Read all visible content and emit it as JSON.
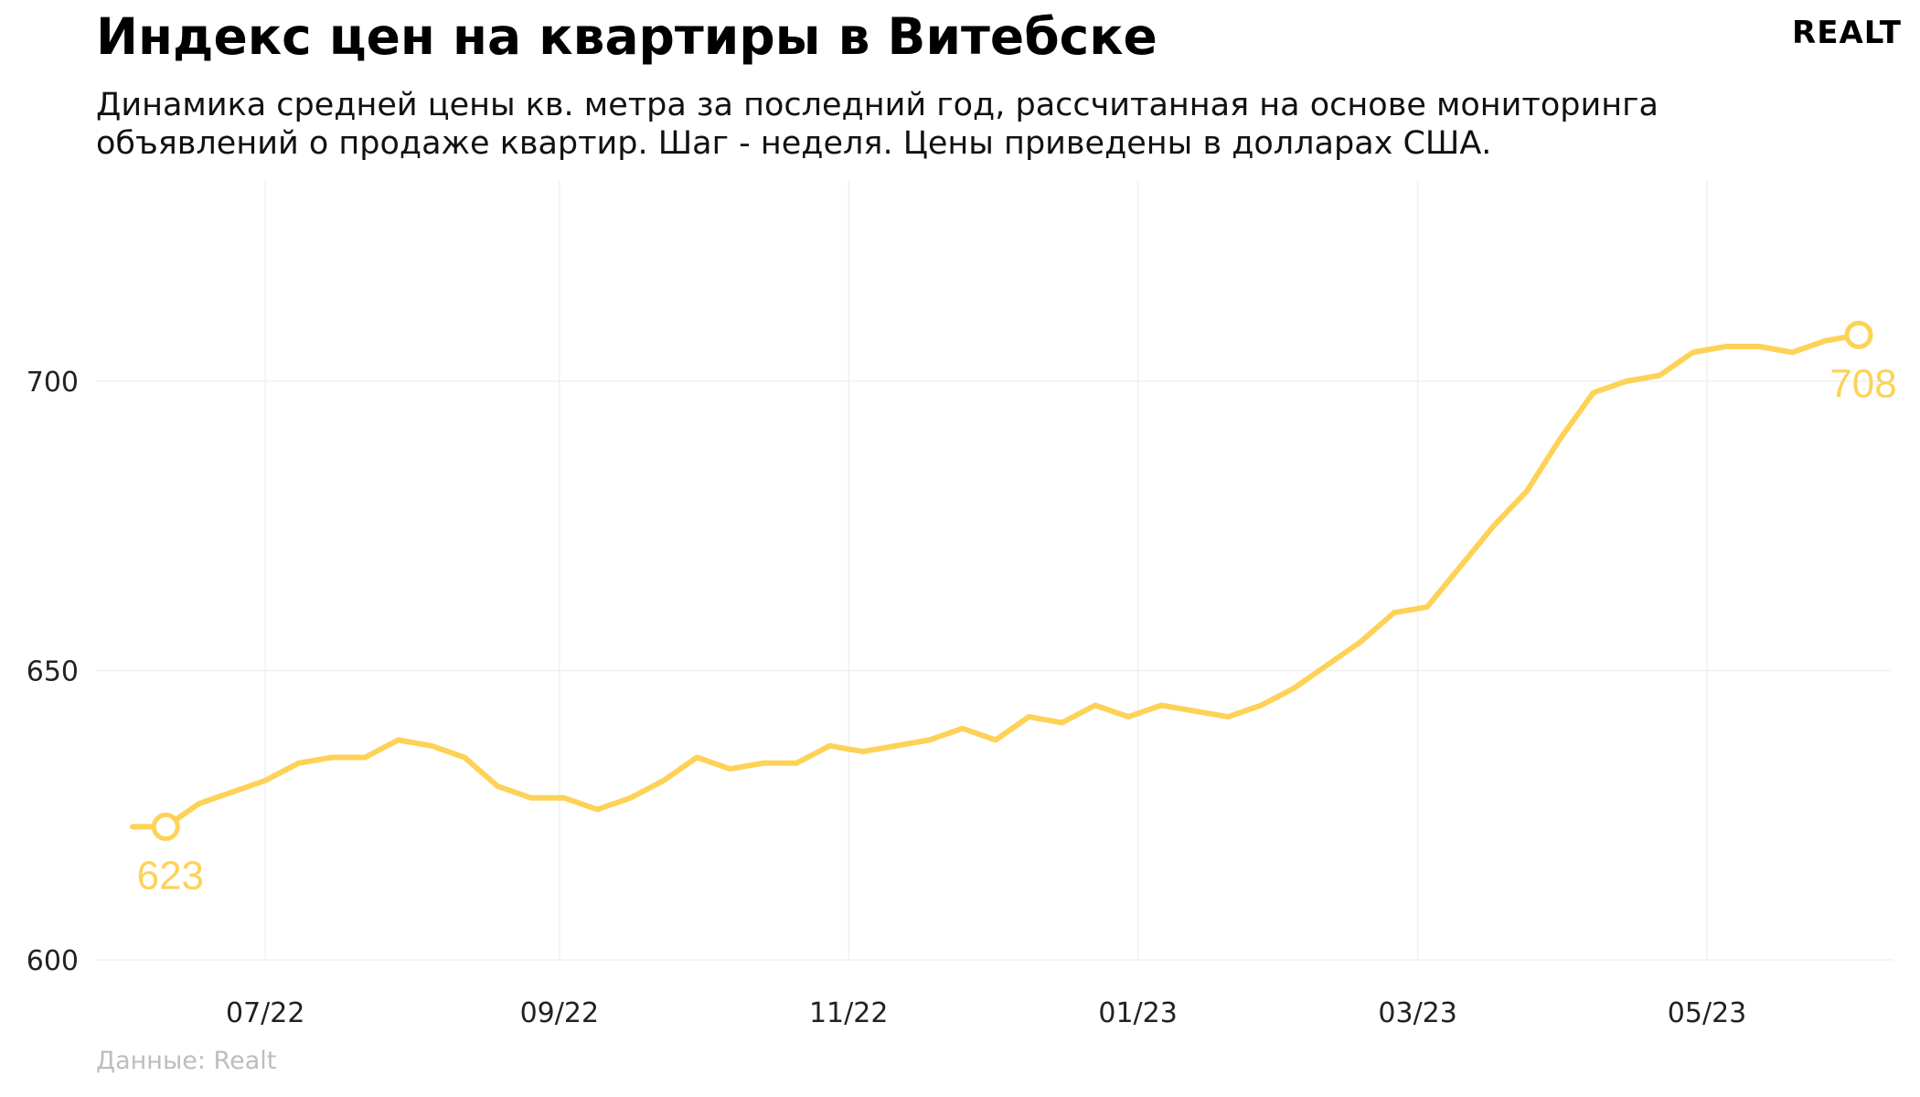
{
  "header": {
    "title": "Индекс цен на квартиры в Витебске",
    "subtitle": "Динамика средней цены кв. метра за последний год, рассчитанная на основе мониторинга объявлений о продаже квартир. Шаг - неделя. Цены приведены в долларах США.",
    "logo": "REALT"
  },
  "footer": {
    "source": "Данные: Realt"
  },
  "colors": {
    "line": "#fdd257",
    "grid": "#f0f0f0"
  },
  "chart_data": {
    "type": "line",
    "title": "Индекс цен на квартиры в Витебске",
    "xlabel": "",
    "ylabel": "",
    "ylim": [
      600,
      735
    ],
    "yticks": [
      600,
      650,
      700
    ],
    "xticks": [
      {
        "date": "2022-07-01",
        "label": "07/22"
      },
      {
        "date": "2022-09-01",
        "label": "09/22"
      },
      {
        "date": "2022-11-01",
        "label": "11/22"
      },
      {
        "date": "2023-01-01",
        "label": "01/23"
      },
      {
        "date": "2023-03-01",
        "label": "03/23"
      },
      {
        "date": "2023-05-01",
        "label": "05/23"
      }
    ],
    "grid": true,
    "legend": "none",
    "series": [
      {
        "x": [
          "2022-06-03",
          "2022-06-10",
          "2022-06-17",
          "2022-06-24",
          "2022-07-01",
          "2022-07-08",
          "2022-07-15",
          "2022-07-22",
          "2022-07-29",
          "2022-08-05",
          "2022-08-12",
          "2022-08-19",
          "2022-08-26",
          "2022-09-02",
          "2022-09-09",
          "2022-09-16",
          "2022-09-23",
          "2022-09-30",
          "2022-10-07",
          "2022-10-14",
          "2022-10-21",
          "2022-10-28",
          "2022-11-04",
          "2022-11-11",
          "2022-11-18",
          "2022-11-25",
          "2022-12-02",
          "2022-12-09",
          "2022-12-16",
          "2022-12-23",
          "2022-12-30",
          "2023-01-06",
          "2023-01-13",
          "2023-01-20",
          "2023-01-27",
          "2023-02-03",
          "2023-02-10",
          "2023-02-17",
          "2023-02-24",
          "2023-03-03",
          "2023-03-10",
          "2023-03-17",
          "2023-03-24",
          "2023-03-31",
          "2023-04-07",
          "2023-04-14",
          "2023-04-21",
          "2023-04-28",
          "2023-05-05",
          "2023-05-12",
          "2023-05-19",
          "2023-05-26",
          "2023-06-02"
        ],
        "values": [
          623,
          623,
          627,
          629,
          631,
          634,
          635,
          635,
          638,
          637,
          635,
          630,
          628,
          628,
          626,
          628,
          631,
          635,
          633,
          634,
          634,
          637,
          636,
          637,
          638,
          640,
          638,
          642,
          641,
          644,
          642,
          644,
          643,
          642,
          644,
          647,
          651,
          655,
          660,
          661,
          668,
          675,
          681,
          690,
          698,
          700,
          701,
          705,
          706,
          706,
          705,
          707,
          708
        ]
      }
    ],
    "annotations": [
      {
        "label": "623",
        "value": 623
      },
      {
        "label": "708",
        "value": 708
      }
    ]
  }
}
